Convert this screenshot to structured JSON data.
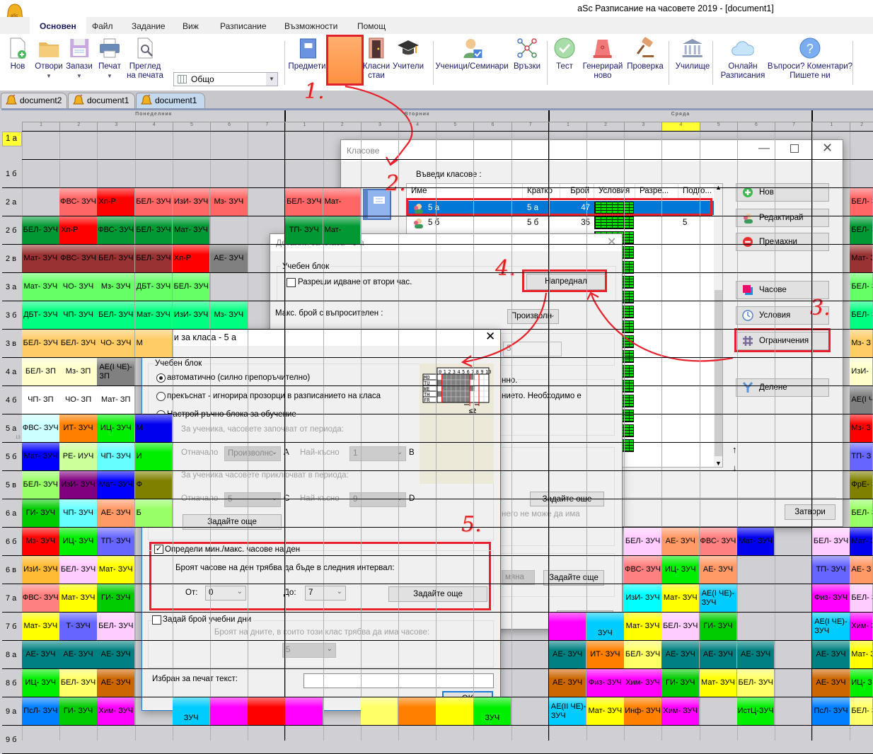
{
  "app": {
    "title": "aSc Разписание на часовете 2019  - [document1]"
  },
  "menu": [
    "Основен",
    "Файл",
    "Задание",
    "Виж",
    "Разписание",
    "Възможности",
    "Помощ"
  ],
  "ribbon": {
    "view_select": "Общо",
    "buttons": [
      {
        "icon": "new-document-icon",
        "lines": [
          "Нов"
        ]
      },
      {
        "icon": "folder-icon",
        "lines": [
          "Отвори"
        ],
        "dropdown": true
      },
      {
        "icon": "save-icon",
        "lines": [
          "Запази"
        ],
        "dropdown": true
      },
      {
        "icon": "printer-icon",
        "lines": [
          "Печат"
        ],
        "dropdown": true
      },
      {
        "icon": "print-preview-icon",
        "lines": [
          "Преглед",
          "на печата"
        ]
      },
      {
        "icon": "subjects-icon",
        "lines": [
          "Предмети"
        ]
      },
      {
        "icon": "classes-icon",
        "lines": [
          "Класове"
        ],
        "active": true
      },
      {
        "icon": "classrooms-icon",
        "lines": [
          "Класни",
          "стаи"
        ]
      },
      {
        "icon": "teachers-icon",
        "lines": [
          "Учители"
        ]
      },
      {
        "icon": "students-icon",
        "lines": [
          "Ученици/Семинари"
        ]
      },
      {
        "icon": "links-icon",
        "lines": [
          "Връзки"
        ]
      },
      {
        "icon": "test-icon",
        "lines": [
          "Тест"
        ]
      },
      {
        "icon": "generate-icon",
        "lines": [
          "Генерирай",
          "ново"
        ]
      },
      {
        "icon": "check-icon",
        "lines": [
          "Проверка"
        ]
      },
      {
        "icon": "school-icon",
        "lines": [
          "Училище"
        ]
      },
      {
        "icon": "cloud-icon",
        "lines": [
          "Онлайн",
          "Разписания"
        ]
      },
      {
        "icon": "help-icon",
        "lines": [
          "Въпроси? Коментари?",
          "Пишете ни"
        ]
      }
    ]
  },
  "doc_tabs": [
    {
      "label": "document2"
    },
    {
      "label": "document1"
    },
    {
      "label": "document1",
      "active": true
    }
  ],
  "grid": {
    "days": [
      "Понеделник",
      "Вторник",
      "Сряда",
      ""
    ],
    "periods": [
      "1",
      "2",
      "3",
      "4",
      "5",
      "6",
      "7"
    ],
    "highlighted": {
      "day": 2,
      "period": "4"
    },
    "rows": [
      {
        "label": "1 а",
        "selected": true,
        "cells": []
      },
      {
        "label": "1 б",
        "cells": []
      },
      {
        "label": "2 а",
        "cells": [
          [
            1,
            "ФВС- ЗУЧ",
            "#ff6666"
          ],
          [
            2,
            "Хп-Р",
            "#ff0000"
          ],
          [
            3,
            "БЕЛ- ЗУЧ",
            "#ff6666"
          ],
          [
            4,
            "ИзИ- ЗУЧ",
            "#ff6666"
          ],
          [
            5,
            "Мз- ЗУЧ",
            "#ff6666"
          ],
          [
            7,
            "БЕЛ- ЗУЧ",
            "#ff6666"
          ],
          [
            8,
            "Мат-",
            "#ff6666"
          ],
          [
            22,
            "БЕЛ- З",
            "#ff6666"
          ]
        ]
      },
      {
        "label": "2 б",
        "cells": [
          [
            0,
            "БЕЛ- ЗУЧ",
            "#009933"
          ],
          [
            1,
            "Хп-Р",
            "#ff0000"
          ],
          [
            2,
            "ФВС- ЗУЧ",
            "#009933"
          ],
          [
            3,
            "БЕЛ- ЗУЧ",
            "#009933"
          ],
          [
            4,
            "Мат- ЗУЧ",
            "#009933"
          ],
          [
            7,
            "ТП- ЗУЧ",
            "#009933"
          ],
          [
            8,
            "Мат-",
            "#009933"
          ],
          [
            22,
            "БЕЛ- З",
            "#009933"
          ]
        ]
      },
      {
        "label": "2 в",
        "cells": [
          [
            0,
            "Мат- ЗУЧ",
            "#993333"
          ],
          [
            1,
            "ФВС- ЗУЧ",
            "#993333"
          ],
          [
            2,
            "БЕЛ- ЗУЧ",
            "#993333"
          ],
          [
            3,
            "БЕЛ- ЗУЧ",
            "#993333"
          ],
          [
            4,
            "Хп-Р",
            "#ff0000"
          ],
          [
            5,
            "АЕ- ЗУЧ",
            "#808080"
          ],
          [
            22,
            "Мат- З",
            "#993333"
          ]
        ]
      },
      {
        "label": "3 а",
        "cells": [
          [
            0,
            "Мат- ЗУЧ",
            "#66ff66"
          ],
          [
            1,
            "ЧО- ЗУЧ",
            "#66ff66"
          ],
          [
            2,
            "Мз- ЗУЧ",
            "#66ff66"
          ],
          [
            3,
            "ДБТ- ЗУЧ",
            "#66ff66"
          ],
          [
            4,
            "БЕЛ- ЗУЧ",
            "#66ff66"
          ],
          [
            22,
            "БЕЛ- З",
            "#66ff66"
          ]
        ]
      },
      {
        "label": "3 б",
        "cells": [
          [
            0,
            "ДБТ- ЗУЧ",
            "#00ff80"
          ],
          [
            1,
            "ЧП- ЗУЧ",
            "#00ff80"
          ],
          [
            2,
            "БЕЛ- ЗУЧ",
            "#00ff80"
          ],
          [
            3,
            "Мат- ЗУЧ",
            "#00ff80"
          ],
          [
            4,
            "ИзИ- ЗУЧ",
            "#00ff80"
          ],
          [
            5,
            "Мз- ЗУЧ",
            "#00ff80"
          ],
          [
            22,
            "БЕЛ- З",
            "#00ff80"
          ]
        ]
      },
      {
        "label": "3 в",
        "cells": [
          [
            0,
            "БЕЛ- ЗУЧ",
            "#ffcc66"
          ],
          [
            1,
            "БЕЛ- ЗУЧ",
            "#ffcc66"
          ],
          [
            2,
            "ЧО- ЗУЧ",
            "#ffcc66"
          ],
          [
            3,
            "М",
            "#ffcc66"
          ],
          [
            22,
            "Мз- З",
            "#ffcc66"
          ]
        ]
      },
      {
        "label": "4 а",
        "cells": [
          [
            0,
            "БЕЛ- ЗП",
            "#ffffcc"
          ],
          [
            1,
            "Мз- ЗП",
            "#ffffcc"
          ],
          [
            2,
            "АЕ(I ЧЕ)-ЗП",
            "#808080"
          ],
          [
            22,
            "ИзИ-",
            "#ffffcc"
          ]
        ]
      },
      {
        "label": "4 б",
        "cells": [
          [
            0,
            "ЧП- ЗП",
            "#ffffff"
          ],
          [
            1,
            "ЧО- ЗП",
            "#ffffff"
          ],
          [
            2,
            "Мат- ЗП",
            "#ffffff"
          ],
          [
            22,
            "АЕ(I Ч ЗП",
            "#808080"
          ]
        ]
      },
      {
        "label": "5 а",
        "badge": "13",
        "cells": [
          [
            0,
            "ФВС- ЗУЧ",
            "#ccffff"
          ],
          [
            1,
            "ИТ- ЗУЧ",
            "#ff8000"
          ],
          [
            2,
            "ИЦ- ЗУЧ",
            "#00ee00"
          ],
          [
            3,
            "М",
            "#0000ee"
          ],
          [
            22,
            "Мз- З",
            "#ff0000"
          ]
        ]
      },
      {
        "label": "5 б",
        "cells": [
          [
            0,
            "Мат- ЗУЧ",
            "#0000ff"
          ],
          [
            1,
            "РЕ- ИУЧ",
            "#ccff99"
          ],
          [
            2,
            "ЧП- ЗУЧ",
            "#66ffff"
          ],
          [
            3,
            "И",
            "#00ee00"
          ],
          [
            22,
            "ТП- З",
            "#6666ff"
          ]
        ]
      },
      {
        "label": "5 в",
        "cells": [
          [
            0,
            "БЕЛ- ЗУЧ",
            "#99ff66"
          ],
          [
            1,
            "ИзИ- ЗУЧ",
            "#800080"
          ],
          [
            2,
            "Мат- ЗУЧ",
            "#0000ff"
          ],
          [
            3,
            "Ф",
            "#808000"
          ],
          [
            22,
            "ФрЕ- З",
            "#808000"
          ]
        ]
      },
      {
        "label": "6 а",
        "cells": [
          [
            0,
            "ГИ- ЗУЧ",
            "#00cc00"
          ],
          [
            1,
            "ЧП- ЗУЧ",
            "#66ffff"
          ],
          [
            2,
            "АЕ- ЗУЧ",
            "#ff9966"
          ],
          [
            3,
            "Б",
            "#99ff66"
          ],
          [
            22,
            "БЕЛ- З",
            "#99ff66"
          ]
        ]
      },
      {
        "label": "6 б",
        "cells": [
          [
            0,
            "Мз- ЗУЧ",
            "#ff0000"
          ],
          [
            1,
            "ИЦ- ЗУЧ",
            "#00ee00"
          ],
          [
            2,
            "ТП- ЗУЧ",
            "#6666ff"
          ],
          [
            16,
            "БЕЛ- ЗУЧ",
            "#ffccff"
          ],
          [
            17,
            "АЕ- ЗУЧ",
            "#ff9966"
          ],
          [
            18,
            "ФВС- ЗУЧ",
            "#ff8080"
          ],
          [
            19,
            "Мат- ЗУЧ",
            "#0000ee"
          ],
          [
            21,
            "БЕЛ- ЗУЧ",
            "#ffccff"
          ],
          [
            22,
            "Мат- З",
            "#0000ee"
          ]
        ]
      },
      {
        "label": "6 в",
        "cells": [
          [
            0,
            "ИзИ- ЗУЧ",
            "#ffbb33"
          ],
          [
            1,
            "БЕЛ- ЗУЧ",
            "#ffccff"
          ],
          [
            2,
            "Мат- ЗУЧ",
            "#ffff00"
          ],
          [
            16,
            "ФВС- ЗУЧ",
            "#ff8080"
          ],
          [
            17,
            "ИЦ- ЗУЧ",
            "#00ee00"
          ],
          [
            18,
            "АЕ- ЗУЧ",
            "#ff9966"
          ],
          [
            21,
            "ТП- ЗУЧ",
            "#6666ff"
          ],
          [
            22,
            "АЕ- З",
            "#ff9966"
          ]
        ]
      },
      {
        "label": "7 а",
        "cells": [
          [
            0,
            "ФВС- ЗУЧ",
            "#ff8080"
          ],
          [
            1,
            "Мат- ЗУЧ",
            "#ffff00"
          ],
          [
            2,
            "ГИ- ЗУЧ",
            "#00cc00"
          ],
          [
            16,
            "ИзИ- ЗУЧ",
            "#00ffff"
          ],
          [
            17,
            "Мат- ЗУЧ",
            "#ffff00"
          ],
          [
            18,
            "АЕ(I ЧЕ)-ЗУЧ",
            "#00ccff"
          ],
          [
            21,
            "Физ- ЗУЧ",
            "#ff00ff"
          ],
          [
            22,
            "БЕЛ- З",
            "#ffccff"
          ]
        ]
      },
      {
        "label": "7 б",
        "cells": [
          [
            0,
            "Мат- ЗУЧ",
            "#ffff00"
          ],
          [
            1,
            "Т- ЗУЧ",
            "#6666ff"
          ],
          [
            2,
            "БЕЛ- ЗУЧ",
            "#ffccff"
          ],
          [
            15,
            "ЗУЧ",
            "#00ccff"
          ],
          [
            14,
            "",
            "#ff00ff"
          ],
          [
            16,
            "Мат- ЗУЧ",
            "#ffff00"
          ],
          [
            17,
            "БЕЛ- ЗУЧ",
            "#ffccff"
          ],
          [
            18,
            "ГИ- ЗУЧ",
            "#00cc00"
          ],
          [
            21,
            "АЕ(I ЧЕ)-ЗУЧ",
            "#00ccff"
          ],
          [
            22,
            "Хим- З",
            "#ff00ff"
          ]
        ]
      },
      {
        "label": "8 а",
        "cells": [
          [
            0,
            "АЕ- ЗУЧ",
            "#008080"
          ],
          [
            1,
            "АЕ- ЗУЧ",
            "#008080"
          ],
          [
            2,
            "АЕ- ЗУЧ",
            "#008080"
          ],
          [
            14,
            "АЕ- ЗУЧ",
            "#008080"
          ],
          [
            15,
            "ИТ- ЗУЧ",
            "#ff8000"
          ],
          [
            16,
            "БЕЛ- ЗУЧ",
            "#ffff66"
          ],
          [
            17,
            "АЕ- ЗУЧ",
            "#008080"
          ],
          [
            18,
            "АЕ- ЗУЧ",
            "#008080"
          ],
          [
            19,
            "АЕ- ЗУЧ",
            "#008080"
          ],
          [
            21,
            "АЕ- ЗУЧ",
            "#008080"
          ],
          [
            22,
            "Мат- З",
            "#ffff00"
          ]
        ]
      },
      {
        "label": "8 б",
        "cells": [
          [
            0,
            "ИЦ- ЗУЧ",
            "#00ee00"
          ],
          [
            1,
            "БЕЛ- ЗУЧ",
            "#ffff66"
          ],
          [
            2,
            "АЕ- ЗУЧ",
            "#cc6600"
          ],
          [
            14,
            "АЕ- ЗУЧ",
            "#cc6600"
          ],
          [
            15,
            "Физ- ЗУЧ",
            "#ff00ff"
          ],
          [
            16,
            "Хим- ЗУЧ",
            "#ff00ff"
          ],
          [
            17,
            "ГИ- ЗУЧ",
            "#00cc00"
          ],
          [
            18,
            "Мат- ЗУЧ",
            "#ffff00"
          ],
          [
            19,
            "БЕЛ- ЗУЧ",
            "#ffff66"
          ],
          [
            21,
            "АЕ- ЗУЧ",
            "#cc6600"
          ],
          [
            22,
            "ИЦ- З",
            "#00ee00"
          ]
        ]
      },
      {
        "label": "9 а",
        "cells": [
          [
            0,
            "ПсЛ- ЗУЧ",
            "#0080ff"
          ],
          [
            1,
            "ГИ- ЗУЧ",
            "#00cc00"
          ],
          [
            2,
            "Хим- ЗУЧ",
            "#ff00ff"
          ],
          [
            4,
            "ЗУЧ",
            "#00ccff"
          ],
          [
            5,
            "",
            "#ff00ff"
          ],
          [
            6,
            "",
            "#ff0000"
          ],
          [
            7,
            "",
            "#ff00ff"
          ],
          [
            9,
            "",
            "#ffff66"
          ],
          [
            10,
            "",
            "#ff8000"
          ],
          [
            11,
            "",
            "#ffff00"
          ],
          [
            12,
            "ЗУЧ",
            "#00ee00"
          ],
          [
            14,
            "АЕ(II ЧЕ)-ЗУЧ",
            "#00ccff"
          ],
          [
            15,
            "Мат- ЗУЧ",
            "#ffff00"
          ],
          [
            16,
            "Инф- ЗУЧ",
            "#ff8000"
          ],
          [
            17,
            "Хим- ЗУЧ",
            "#ff00ff"
          ],
          [
            19,
            "ИстЦ-ЗУЧ",
            "#00ee00"
          ],
          [
            21,
            "ПсЛ- ЗУЧ",
            "#0080ff"
          ],
          [
            22,
            "БЕЛ- З",
            "#ffff66"
          ]
        ]
      },
      {
        "label": "9 б",
        "cells": []
      }
    ]
  },
  "classes_dialog": {
    "title": "Класове",
    "list_label": "Въведи класове :",
    "columns": [
      "Име",
      "Кратко",
      "Брой",
      "Условия",
      "Разре...",
      "Подго..."
    ],
    "rows": [
      {
        "name": "5 а",
        "short": "5 а",
        "count": "47",
        "prep": "",
        "selected": true
      },
      {
        "name": "5 б",
        "short": "5 б",
        "count": "35",
        "prep": "5"
      }
    ],
    "buttons": {
      "new": "Нов",
      "edit": "Редактирай",
      "remove": "Премахни",
      "hours": "Часове",
      "conditions": "Условия",
      "constraints": "Ограничения",
      "split": "Делене",
      "close": "Затвори"
    }
  },
  "details_back": {
    "title": "Детайли за класа - 5 а",
    "group": "Учебен блок",
    "allow_second": "Разреши идване от втори час.",
    "advanced": "Напреднал",
    "max_q_label": "Макс. брой с въпросителен :",
    "max_q_value": "Произволн",
    "field_value": "5",
    "text1": "нно.",
    "text2": "нието. Необходимо е",
    "text3": "него не може да има",
    "set_more": "Задайте още",
    "disabled_field": "мяна",
    "ok": "OK"
  },
  "details_front": {
    "title": "Детайли за класа - 5 а",
    "group": "Учебен блок",
    "radio_auto": "автоматично (силно препоръчително)",
    "radio_broken": "прекъснат - игнорира прозорци в разписанието на класа",
    "radio_manual": "Настрой ръчно блока за обучение",
    "start_label": "За ученика, часовете започват от периода:",
    "end_label": "За ученика часовете приключват в периода:",
    "from_label": "Отначало",
    "latest_label": "Най-късно",
    "start_from": "Произволнс",
    "start_latest": "1",
    "end_from": "5",
    "end_latest": "9",
    "letters": [
      "A",
      "B",
      "C",
      "D"
    ],
    "set_more": "Задайте още",
    "diagram": {
      "hours": [
        "0",
        "1",
        "2",
        "3",
        "4",
        "5",
        "6",
        "7",
        "8",
        "9",
        "10"
      ],
      "days": [
        "MO",
        "TU",
        "WE",
        "TH",
        "FR"
      ],
      "note": "≤2"
    },
    "minmax_check": "Определи мин./макс. часове на ден",
    "minmax_checked": true,
    "minmax_text": "Броят часове на ден трябва да бъде в следния интервал:",
    "from": "От:",
    "from_value": "0",
    "to": "До:",
    "to_value": "7",
    "days_check": "Задай брой учебни дни",
    "days_checked": false,
    "days_text": "Броят на дните, в които този клас трябва да има часове:",
    "days_value": "5",
    "print_label": "Избран за печат текст:",
    "print_value": "",
    "ok": "OK"
  },
  "annotations": [
    "1.",
    "2.",
    "3.",
    "4.",
    "5."
  ],
  "colors": {
    "selection": "#0078d7",
    "annotation": "#e8202a",
    "highlight": "#ffff33"
  }
}
